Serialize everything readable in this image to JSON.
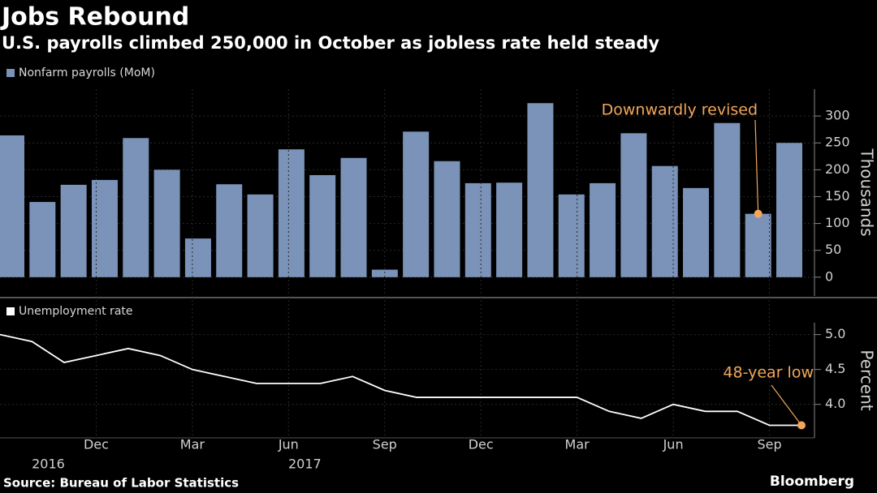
{
  "header": {
    "title": "Jobs Rebound",
    "subtitle": "U.S. payrolls climbed 250,000 in October as jobless rate held steady"
  },
  "footer": {
    "source": "Source: Bureau of Labor Statistics",
    "brand": "Bloomberg"
  },
  "chart_data": [
    {
      "type": "bar",
      "ylabel": "Thousands",
      "series": [
        {
          "name": "Nonfarm payrolls (MoM)",
          "color": "#7b93b8",
          "values": [
            264,
            140,
            172,
            181,
            259,
            200,
            72,
            173,
            154,
            238,
            190,
            222,
            14,
            271,
            216,
            175,
            176,
            324,
            154,
            175,
            268,
            207,
            166,
            287,
            118,
            250
          ]
        }
      ],
      "ylim": [
        -35,
        350
      ],
      "yticks": [
        0,
        50,
        100,
        150,
        200,
        250,
        300
      ],
      "grid": true,
      "annotation": {
        "text": "Downwardly revised",
        "color": "#f2a65a"
      }
    },
    {
      "type": "line",
      "ylabel": "Percent",
      "categories": [
        null,
        null,
        null,
        "Dec",
        null,
        null,
        "Mar",
        null,
        null,
        "Jun",
        null,
        null,
        "Sep",
        null,
        null,
        "Dec",
        null,
        null,
        "Mar",
        null,
        null,
        "Jun",
        null,
        null,
        "Sep",
        null
      ],
      "year_labels": [
        null,
        "2016",
        null,
        null,
        null,
        null,
        null,
        null,
        null,
        "2017",
        null,
        null,
        null,
        null,
        null,
        null,
        null,
        null,
        null,
        null,
        null,
        null,
        null,
        null,
        null,
        null
      ],
      "series": [
        {
          "name": "Unemployment rate",
          "color": "#ffffff",
          "values": [
            5.0,
            4.9,
            4.6,
            4.7,
            4.8,
            4.7,
            4.5,
            4.4,
            4.3,
            4.3,
            4.3,
            4.4,
            4.2,
            4.1,
            4.1,
            4.1,
            4.1,
            4.1,
            4.1,
            3.9,
            3.8,
            4.0,
            3.9,
            3.9,
            3.7,
            3.7
          ]
        }
      ],
      "ylim": [
        3.52,
        5.17
      ],
      "yticks": [
        {
          "value": 4.0,
          "label": "4.0"
        },
        4.5,
        {
          "value": 5.0,
          "label": "5.0"
        }
      ],
      "grid": true,
      "annotation": {
        "text": "48-year low",
        "color": "#f2a65a"
      }
    }
  ]
}
